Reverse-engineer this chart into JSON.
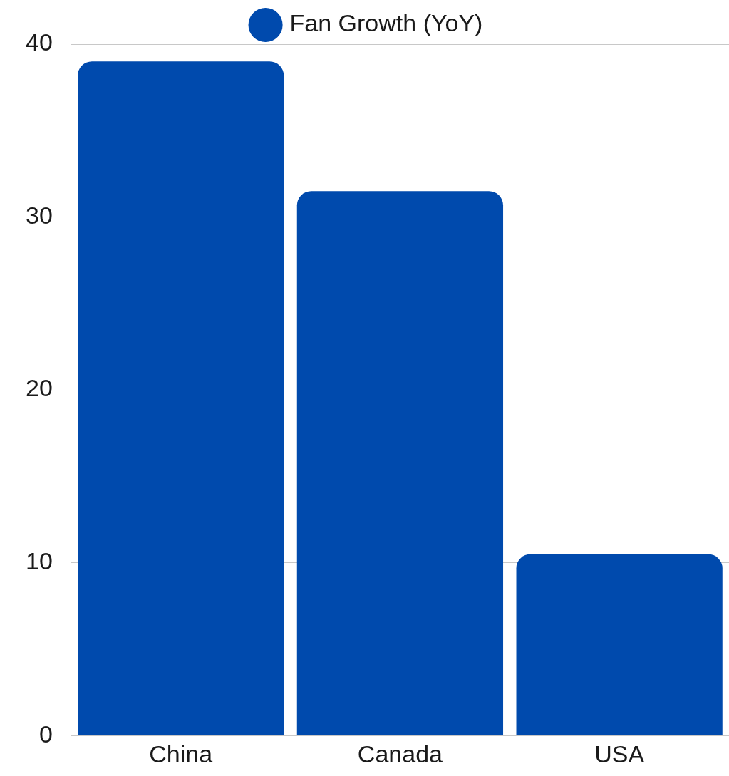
{
  "chart_data": {
    "type": "bar",
    "categories": [
      "China",
      "Canada",
      "USA"
    ],
    "series": [
      {
        "name": "Fan Growth (YoY)",
        "color": "#004aad",
        "values": [
          39,
          31.5,
          10.5
        ]
      }
    ],
    "ylim": [
      0,
      40
    ],
    "yticks": [
      0,
      10,
      20,
      30,
      40
    ],
    "grid": "y",
    "legend": "top"
  }
}
